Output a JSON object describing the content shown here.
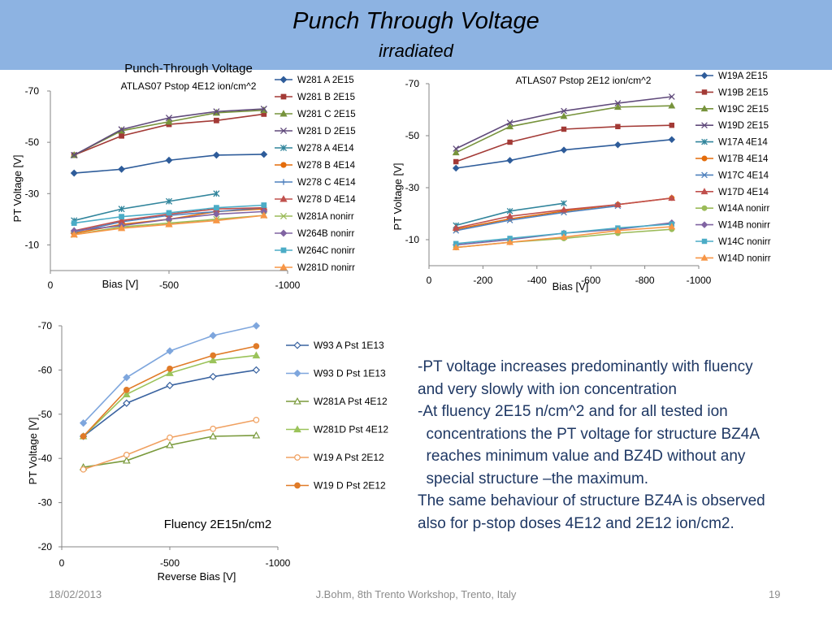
{
  "slide": {
    "title": "Punch Through Voltage",
    "subtitle": "irradiated",
    "body_lines": [
      "-PT voltage increases predominantly with fluency",
      "and very slowly with ion concentration",
      "-At fluency 2E15 n/cm^2  and for all tested ion",
      "  concentrations the PT voltage for structure BZ4A",
      "  reaches minimum value and BZ4D without any",
      "  special structure –the maximum.",
      "The same behaviour of structure BZ4A is observed",
      "also for p-stop doses 4E12 and 2E12 ion/cm2."
    ],
    "footer_date": "18/02/2013",
    "footer_center": "J.Bohm, 8th Trento Workshop, Trento, Italy",
    "footer_page": "19"
  },
  "chart_data": [
    {
      "type": "line",
      "title": "Punch-Through Voltage",
      "subtitle": "ATLAS07 Pstop 4E12 ion/cm^2",
      "xlabel": "Bias [V]",
      "ylabel": "PT Voltage [V]",
      "xlim": [
        0,
        -1000
      ],
      "ylim": [
        0,
        -70
      ],
      "x_ticks": [
        {
          "value": 0,
          "label": "0"
        },
        {
          "value": -500,
          "label": "-500"
        },
        {
          "value": -1000,
          "label": "-1000"
        }
      ],
      "y_ticks": [
        {
          "value": -10,
          "label": "-10"
        },
        {
          "value": -30,
          "label": "-30"
        },
        {
          "value": -50,
          "label": "-50"
        },
        {
          "value": -70,
          "label": "-70"
        }
      ],
      "legend_position": "right",
      "grid": false,
      "series": [
        {
          "name": "W281 A 2E15",
          "color": "#2e5c9a",
          "marker": "diamond",
          "x": [
            -100,
            -300,
            -500,
            -700,
            -900
          ],
          "y": [
            -38,
            -39.5,
            -43,
            -45,
            -45.3
          ]
        },
        {
          "name": "W281 B 2E15",
          "color": "#a33a36",
          "marker": "square",
          "x": [
            -100,
            -300,
            -500,
            -700,
            -900
          ],
          "y": [
            -45,
            -52.5,
            -57,
            -58.5,
            -61
          ]
        },
        {
          "name": "W281 C 2E15",
          "color": "#77933c",
          "marker": "triangle",
          "x": [
            -100,
            -300,
            -500,
            -700,
            -900
          ],
          "y": [
            -45,
            -54.5,
            -58,
            -61.5,
            -62.5
          ]
        },
        {
          "name": "W281 D 2E15",
          "color": "#604a7b",
          "marker": "x",
          "x": [
            -100,
            -300,
            -500,
            -700,
            -900
          ],
          "y": [
            -45,
            -55,
            -59.5,
            -62,
            -63
          ]
        },
        {
          "name": "W278 A 4E14",
          "color": "#31859c",
          "marker": "star",
          "x": [
            -100,
            -300,
            -500,
            -700
          ],
          "y": [
            -19.5,
            -24,
            -27,
            -30
          ]
        },
        {
          "name": "W278 B 4E14",
          "color": "#e46c0a",
          "marker": "circle",
          "x": [
            -100,
            -300,
            -500,
            -700,
            -900
          ],
          "y": [
            -14.5,
            -18,
            -20,
            -23,
            -24
          ]
        },
        {
          "name": "W278 C 4E14",
          "color": "#4f81bd",
          "marker": "plus",
          "x": [
            -100,
            -300,
            -500,
            -700,
            -900
          ],
          "y": [
            -15,
            -19,
            -21.5,
            -23,
            -24.5
          ]
        },
        {
          "name": "W278 D 4E14",
          "color": "#c0504d",
          "marker": "triangle",
          "x": [
            -100,
            -300,
            -500,
            -700,
            -900
          ],
          "y": [
            -15.5,
            -19.5,
            -22,
            -24,
            -24.5
          ]
        },
        {
          "name": "W281A nonirr",
          "color": "#9bbb59",
          "marker": "x",
          "x": [
            -100,
            -300,
            -500,
            -700,
            -900
          ],
          "y": [
            -14,
            -17,
            -18.5,
            -20,
            -21.5
          ]
        },
        {
          "name": "W264B nonirr",
          "color": "#8064a2",
          "marker": "diamond",
          "x": [
            -100,
            -300,
            -500,
            -700,
            -900
          ],
          "y": [
            -15.5,
            -17.5,
            -20,
            -22,
            -23
          ]
        },
        {
          "name": "W264C nonirr",
          "color": "#4bacc6",
          "marker": "square",
          "x": [
            -100,
            -300,
            -500,
            -700,
            -900
          ],
          "y": [
            -18.5,
            -21,
            -22.5,
            -24.5,
            -25.5
          ]
        },
        {
          "name": "W281D nonirr",
          "color": "#f79646",
          "marker": "triangle",
          "x": [
            -100,
            -300,
            -500,
            -700,
            -900
          ],
          "y": [
            -14,
            -16.5,
            -18,
            -19.5,
            -21.5
          ]
        }
      ]
    },
    {
      "type": "line",
      "subtitle": "ATLAS07 Pstop 2E12 ion/cm^2",
      "xlabel": "Bias [V]",
      "ylabel": "PT Voltage [V]",
      "xlim": [
        0,
        -1000
      ],
      "ylim": [
        0,
        -70
      ],
      "x_ticks": [
        {
          "value": 0,
          "label": "0"
        },
        {
          "value": -200,
          "label": "-200"
        },
        {
          "value": -400,
          "label": "-400"
        },
        {
          "value": -600,
          "label": "-600"
        },
        {
          "value": -800,
          "label": "-800"
        },
        {
          "value": -1000,
          "label": "-1000"
        }
      ],
      "y_ticks": [
        {
          "value": -10,
          "label": "-10"
        },
        {
          "value": -30,
          "label": "-30"
        },
        {
          "value": -50,
          "label": "-50"
        },
        {
          "value": -70,
          "label": "-70"
        }
      ],
      "legend_position": "right",
      "grid": false,
      "series": [
        {
          "name": "W19A 2E15",
          "color": "#2e5c9a",
          "marker": "diamond",
          "x": [
            -100,
            -300,
            -500,
            -700,
            -900
          ],
          "y": [
            -37.5,
            -40.5,
            -44.5,
            -46.5,
            -48.5
          ]
        },
        {
          "name": "W19B 2E15",
          "color": "#a33a36",
          "marker": "square",
          "x": [
            -100,
            -300,
            -500,
            -700,
            -900
          ],
          "y": [
            -40,
            -47.5,
            -52.5,
            -53.5,
            -54
          ]
        },
        {
          "name": "W19C 2E15",
          "color": "#77933c",
          "marker": "triangle",
          "x": [
            -100,
            -300,
            -500,
            -700,
            -900
          ],
          "y": [
            -43.5,
            -53.5,
            -57.5,
            -61,
            -61.5
          ]
        },
        {
          "name": "W19D 2E15",
          "color": "#604a7b",
          "marker": "x",
          "x": [
            -100,
            -300,
            -500,
            -700,
            -900
          ],
          "y": [
            -45,
            -55,
            -59.5,
            -62.5,
            -65
          ]
        },
        {
          "name": "W17A 4E14",
          "color": "#31859c",
          "marker": "star",
          "x": [
            -100,
            -300,
            -500
          ],
          "y": [
            -15.5,
            -21,
            -24
          ]
        },
        {
          "name": "W17B 4E14",
          "color": "#e46c0a",
          "marker": "circle",
          "x": [
            -100,
            -300,
            -500,
            -700,
            -900
          ],
          "y": [
            -14,
            -18,
            -21,
            -23.5,
            -26
          ]
        },
        {
          "name": "W17C 4E14",
          "color": "#4f81bd",
          "marker": "x",
          "x": [
            -100,
            -300,
            -500,
            -700
          ],
          "y": [
            -13.5,
            -17.5,
            -20.5,
            -23
          ]
        },
        {
          "name": "W17D 4E14",
          "color": "#c0504d",
          "marker": "triangle",
          "x": [
            -100,
            -300,
            -500,
            -700,
            -900
          ],
          "y": [
            -14.5,
            -19,
            -21.5,
            -23.5,
            -26
          ]
        },
        {
          "name": "W14A nonirr",
          "color": "#9bbb59",
          "marker": "circle",
          "x": [
            -100,
            -300,
            -500,
            -700,
            -900
          ],
          "y": [
            -7,
            -9,
            -10.5,
            -12.5,
            -14
          ]
        },
        {
          "name": "W14B nonirr",
          "color": "#8064a2",
          "marker": "diamond",
          "x": [
            -100,
            -300,
            -500,
            -700,
            -900
          ],
          "y": [
            -8,
            -10,
            -12.5,
            -14,
            -16.5
          ]
        },
        {
          "name": "W14C nonirr",
          "color": "#4bacc6",
          "marker": "square",
          "x": [
            -100,
            -300,
            -500,
            -700,
            -900
          ],
          "y": [
            -8.5,
            -10.5,
            -12.5,
            -14.5,
            -16
          ]
        },
        {
          "name": "W14D nonirr",
          "color": "#f79646",
          "marker": "triangle",
          "x": [
            -100,
            -300,
            -500,
            -700,
            -900
          ],
          "y": [
            -7,
            -9,
            -11,
            -13.5,
            -15
          ]
        }
      ]
    },
    {
      "type": "line",
      "xlabel": "Reverse Bias [V]",
      "ylabel": "PT Voltage [V]",
      "annotation": "Fluency 2E15n/cm2",
      "xlim": [
        0,
        -1000
      ],
      "ylim": [
        -20,
        -70
      ],
      "x_ticks": [
        {
          "value": 0,
          "label": "0"
        },
        {
          "value": -500,
          "label": "-500"
        },
        {
          "value": -1000,
          "label": "-1000"
        }
      ],
      "y_ticks": [
        {
          "value": -20,
          "label": "-20"
        },
        {
          "value": -30,
          "label": "-30"
        },
        {
          "value": -40,
          "label": "-40"
        },
        {
          "value": -50,
          "label": "-50"
        },
        {
          "value": -60,
          "label": "-60"
        },
        {
          "value": -70,
          "label": "-70"
        }
      ],
      "legend_position": "right",
      "grid": false,
      "series": [
        {
          "name": "W93 A Pst 1E13",
          "color": "#3a63a0",
          "marker": "diamond-open",
          "x": [
            -100,
            -300,
            -500,
            -700,
            -900
          ],
          "y": [
            -45,
            -52.5,
            -56.5,
            -58.5,
            -60
          ]
        },
        {
          "name": "W93 D Pst 1E13",
          "color": "#7ea6dd",
          "marker": "diamond",
          "x": [
            -100,
            -300,
            -500,
            -700,
            -900
          ],
          "y": [
            -48,
            -58.3,
            -64.3,
            -67.8,
            -70
          ]
        },
        {
          "name": "W281A Pst 4E12",
          "color": "#7a9a3c",
          "marker": "triangle-open",
          "x": [
            -100,
            -300,
            -500,
            -700,
            -900
          ],
          "y": [
            -38,
            -39.5,
            -43,
            -45,
            -45.2
          ]
        },
        {
          "name": "W281D Pst 4E12",
          "color": "#9bc35a",
          "marker": "triangle",
          "x": [
            -100,
            -300,
            -500,
            -700,
            -900
          ],
          "y": [
            -45,
            -54.5,
            -59.3,
            -62.2,
            -63.3
          ]
        },
        {
          "name": "W19 A Pst 2E12",
          "color": "#f0a060",
          "marker": "circle-open",
          "x": [
            -100,
            -300,
            -500,
            -700,
            -900
          ],
          "y": [
            -37.5,
            -40.8,
            -44.7,
            -46.7,
            -48.7
          ]
        },
        {
          "name": "W19 D Pst 2E12",
          "color": "#e07b28",
          "marker": "circle",
          "x": [
            -100,
            -300,
            -500,
            -700,
            -900
          ],
          "y": [
            -45,
            -55.5,
            -60.3,
            -63.3,
            -65.4
          ]
        }
      ]
    }
  ]
}
